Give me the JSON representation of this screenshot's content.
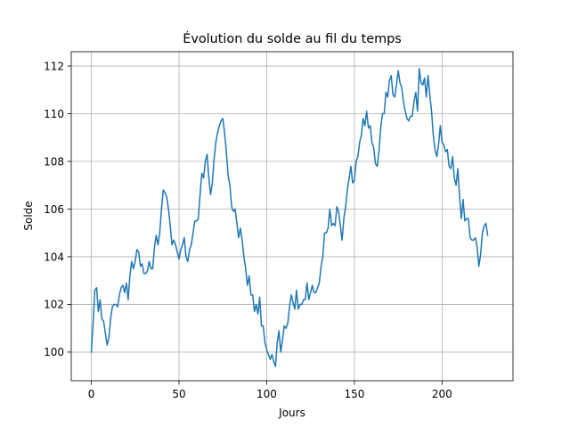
{
  "chart_data": {
    "type": "line",
    "title": "Évolution du solde au fil du temps",
    "xlabel": "Jours",
    "ylabel": "Solde",
    "xlim": [
      -11.45,
      240.45
    ],
    "ylim": [
      98.8,
      112.6
    ],
    "xticks": [
      0,
      50,
      100,
      150,
      200
    ],
    "yticks": [
      100,
      102,
      104,
      106,
      108,
      110,
      112
    ],
    "grid": true,
    "legend": "none",
    "line_color": "#1f77b4",
    "series": [
      {
        "values": [
          100.0,
          101.2,
          102.6,
          102.7,
          101.7,
          102.2,
          101.4,
          101.3,
          100.8,
          100.3,
          100.6,
          101.4,
          101.9,
          102.0,
          102.0,
          101.9,
          102.4,
          102.7,
          102.8,
          102.5,
          102.9,
          102.2,
          103.2,
          103.8,
          103.5,
          103.8,
          104.3,
          104.2,
          103.6,
          103.7,
          103.3,
          103.3,
          103.4,
          103.8,
          103.5,
          103.5,
          104.4,
          104.9,
          104.5,
          105.0,
          106.0,
          106.8,
          106.7,
          106.5,
          106.0,
          105.3,
          104.5,
          104.7,
          104.5,
          104.2,
          103.9,
          104.3,
          104.5,
          104.8,
          104.0,
          103.8,
          104.3,
          104.5,
          105.0,
          105.5,
          105.5,
          105.6,
          106.6,
          107.5,
          107.3,
          108.0,
          108.3,
          107.3,
          106.6,
          107.1,
          108.1,
          108.8,
          109.2,
          109.5,
          109.7,
          109.8,
          109.2,
          108.4,
          107.4,
          107.0,
          106.1,
          105.9,
          106.0,
          105.4,
          104.8,
          105.2,
          104.7,
          104.0,
          103.5,
          102.8,
          103.2,
          102.4,
          102.4,
          101.7,
          102.0,
          101.6,
          102.3,
          101.1,
          101.1,
          100.4,
          100.1,
          99.9,
          99.7,
          99.9,
          99.6,
          99.4,
          100.4,
          100.9,
          100.0,
          100.5,
          101.1,
          101.0,
          101.2,
          101.9,
          102.4,
          102.1,
          101.8,
          102.6,
          101.8,
          102.0,
          102.0,
          102.2,
          102.2,
          102.9,
          102.2,
          102.5,
          102.8,
          102.5,
          102.5,
          102.7,
          102.9,
          103.6,
          104.0,
          105.0,
          105.0,
          105.2,
          106.0,
          105.3,
          105.4,
          105.3,
          106.1,
          105.9,
          105.3,
          104.7,
          105.6,
          106.1,
          106.8,
          107.3,
          107.8,
          107.1,
          107.2,
          108.0,
          108.2,
          108.8,
          109.1,
          109.8,
          109.5,
          110.1,
          109.4,
          109.5,
          108.8,
          108.6,
          107.9,
          107.8,
          108.4,
          109.4,
          110.0,
          110.0,
          110.9,
          110.7,
          111.4,
          111.6,
          110.8,
          110.7,
          111.2,
          111.8,
          111.3,
          111.1,
          110.5,
          110.1,
          109.8,
          109.7,
          109.9,
          109.9,
          110.5,
          110.9,
          110.1,
          111.9,
          111.3,
          111.2,
          111.5,
          110.7,
          111.6,
          110.8,
          110.1,
          109.1,
          108.5,
          108.2,
          108.7,
          109.5,
          108.8,
          108.7,
          108.4,
          108.5,
          107.8,
          107.7,
          108.2,
          107.3,
          107.0,
          107.7,
          106.5,
          105.6,
          106.4,
          105.5,
          105.6,
          105.6,
          104.8,
          104.7,
          104.7,
          104.8,
          104.4,
          103.6,
          104.1,
          105.0,
          105.3,
          105.4,
          104.9
        ]
      }
    ]
  }
}
